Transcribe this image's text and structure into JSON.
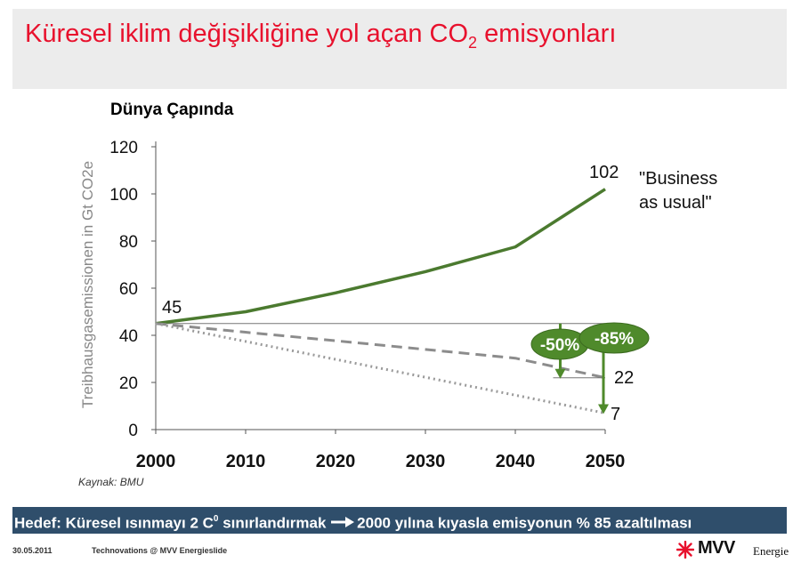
{
  "slide": {
    "title_prefix": "Küresel iklim değişikliğine yol açan CO",
    "title_subscript": "2",
    "title_suffix": " emisyonları",
    "subtitle": "Dünya Çapında",
    "source": "Kaynak: BMU",
    "goal": {
      "part1": "Hedef: Küresel ısınmayı 2 C",
      "superscript": "0",
      "part2": " sınırlandırmak ",
      "arrow_icon": "right-arrow-icon",
      "part3": "2000 yılına kıyasla emisyonun % 85 azaltılması"
    },
    "footer": {
      "date": "30.05.2011",
      "text": "Technovations @ MVV Energieslide"
    },
    "logo": {
      "icon": "mvv-star-icon",
      "text": "MVV",
      "sub": "Energie"
    },
    "colors": {
      "title": "#e8112d",
      "line_green": "#4b7a2f",
      "dashed_grey": "#8c8c8c",
      "dotted_grey": "#9a9a9a",
      "badge_green": "#4f8a2b",
      "goal_bar": "#2f4e6b"
    }
  },
  "chart_data": {
    "type": "line",
    "ylabel": "Treibhausgasemissionen in Gt CO2e",
    "xlabel": "",
    "x": [
      2000,
      2010,
      2020,
      2030,
      2040,
      2050
    ],
    "xlim": [
      2000,
      2050
    ],
    "ylim": [
      0,
      120
    ],
    "yticks": [
      0,
      20,
      40,
      60,
      80,
      100,
      120
    ],
    "xticks": [
      2000,
      2010,
      2020,
      2030,
      2040,
      2050
    ],
    "grid": false,
    "series": [
      {
        "name": "\"Business as usual\"",
        "style": "solid",
        "values": [
          45,
          50,
          58,
          67,
          77.5,
          102
        ]
      },
      {
        "style": "dashed",
        "values": [
          45,
          41.3,
          37.7,
          34,
          30.3,
          22
        ]
      },
      {
        "style": "dotted",
        "values": [
          45,
          37.4,
          29.8,
          22.2,
          14.6,
          7
        ]
      }
    ],
    "point_labels": [
      {
        "x": 2000,
        "y": 45,
        "text": "45"
      },
      {
        "x": 2050,
        "y": 102,
        "text": "102"
      },
      {
        "x": 2050,
        "y": 22,
        "text": "22"
      },
      {
        "x": 2050,
        "y": 7,
        "text": "7"
      }
    ],
    "reference_line": {
      "y": 45,
      "from": 2000,
      "to": 2050
    },
    "legend_text": [
      "\"Business",
      "as usual\""
    ],
    "reductions": [
      {
        "label": "-50%",
        "x": 2045,
        "from": 45,
        "to": 22
      },
      {
        "label": "-85%",
        "x": 2050,
        "from": 45,
        "to": 7
      }
    ]
  }
}
